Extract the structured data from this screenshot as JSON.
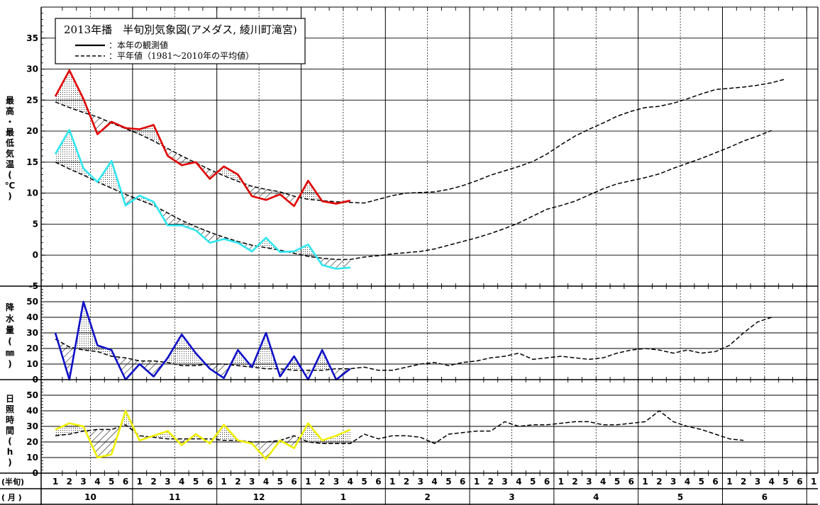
{
  "title": "2013年播　半旬別気象図(アメダス, 綾川町滝宮)",
  "legend": [
    {
      "label": "：本年の観測値",
      "style": "solid"
    },
    {
      "label": "：平年値（1981～2010年の平均値）",
      "style": "dashed"
    }
  ],
  "colors": {
    "max_temp": "#e00000",
    "min_temp": "#2ee6f0",
    "precip": "#1010c8",
    "sunshine": "#f0f000",
    "normal": "#000000"
  },
  "axis_labels": {
    "temp": [
      "最",
      "高",
      "・",
      "最",
      "低",
      "気",
      "温",
      "(",
      "℃",
      ")"
    ],
    "precip": [
      "降",
      "水",
      "量",
      "(",
      "㎜",
      ")"
    ],
    "sun": [
      "日",
      "照",
      "時",
      "間",
      "(",
      "h",
      ")"
    ],
    "x_row1": "(半旬)",
    "x_row2": "( 月 )"
  },
  "x_axis": {
    "pentads": [
      "1",
      "2",
      "3",
      "4",
      "5",
      "6",
      "1",
      "2",
      "3",
      "4",
      "5",
      "6",
      "1",
      "2",
      "3",
      "4",
      "5",
      "6",
      "1",
      "2",
      "3",
      "4",
      "5",
      "6",
      "1",
      "2",
      "3",
      "4",
      "5",
      "6",
      "1",
      "2",
      "3",
      "4",
      "5",
      "6",
      "1",
      "2",
      "3",
      "4",
      "5",
      "6",
      "1",
      "2",
      "3",
      "4",
      "5",
      "6",
      "1",
      "2",
      "3",
      "4",
      "5",
      "6",
      "1"
    ],
    "months": [
      "10",
      "11",
      "12",
      "1",
      "2",
      "3",
      "4",
      "5",
      "6"
    ]
  },
  "chart_data": [
    {
      "type": "line",
      "panel": "temperature",
      "ylim": [
        -5,
        40
      ],
      "yticks": [
        "-5",
        "0",
        "5",
        "10",
        "15",
        "20",
        "25",
        "30",
        "35"
      ],
      "series": [
        {
          "name": "最高",
          "observed": true,
          "values": [
            25.6,
            29.8,
            25.2,
            19.5,
            21.5,
            20.5,
            20.3,
            21.0,
            16.0,
            14.5,
            15.0,
            12.3,
            14.3,
            13.0,
            9.5,
            8.9,
            9.8,
            7.9,
            12.0,
            8.7,
            8.3,
            8.8
          ]
        },
        {
          "name": "最低",
          "observed": true,
          "values": [
            16.3,
            20.2,
            14.0,
            11.8,
            15.2,
            8.0,
            9.6,
            8.6,
            4.8,
            4.8,
            4.0,
            2.0,
            2.6,
            2.0,
            0.6,
            2.8,
            0.5,
            0.6,
            1.7,
            -1.6,
            -2.2,
            -2.0
          ]
        },
        {
          "name": "最高平年",
          "observed": false,
          "values": [
            24.7,
            23.8,
            23.0,
            22.3,
            21.3,
            20.4,
            19.5,
            18.4,
            17.2,
            16.0,
            14.9,
            13.8,
            12.8,
            11.9,
            11.1,
            10.6,
            10.2,
            9.5,
            9.0,
            8.8,
            8.6,
            8.5,
            8.4,
            9.0,
            9.6,
            10.0,
            10.1,
            10.2,
            10.6,
            11.2,
            12.0,
            12.9,
            13.6,
            14.3,
            15.1,
            16.3,
            17.8,
            19.2,
            20.3,
            21.3,
            22.4,
            23.2,
            23.8,
            24.0,
            24.5,
            25.2,
            26.0,
            26.7,
            26.9,
            27.1,
            27.4,
            27.8,
            28.4
          ]
        },
        {
          "name": "最低平年",
          "observed": false,
          "values": [
            15.0,
            13.9,
            12.9,
            11.8,
            10.8,
            9.8,
            8.9,
            8.0,
            6.8,
            5.6,
            4.6,
            3.7,
            2.9,
            2.2,
            1.6,
            1.2,
            0.8,
            0.3,
            -0.2,
            -0.5,
            -0.7,
            -0.7,
            -0.3,
            -0.1,
            0.2,
            0.4,
            0.6,
            1.0,
            1.6,
            2.2,
            2.8,
            3.5,
            4.3,
            5.2,
            6.3,
            7.4,
            8.0,
            8.7,
            9.7,
            10.7,
            11.5,
            12.0,
            12.5,
            13.1,
            14.0,
            14.8,
            15.6,
            16.5,
            17.4,
            18.4,
            19.2,
            20.1
          ]
        }
      ]
    },
    {
      "type": "line",
      "panel": "precipitation",
      "ylim": [
        0,
        50
      ],
      "yticks": [
        "0",
        "10",
        "20",
        "30",
        "40",
        "50"
      ],
      "series": [
        {
          "name": "降水量",
          "observed": true,
          "values": [
            30,
            0,
            50,
            22,
            19,
            0,
            10,
            2,
            14,
            29,
            17,
            7,
            1,
            19,
            8,
            30,
            2,
            15,
            0,
            19,
            0,
            7
          ]
        },
        {
          "name": "降水量平年",
          "observed": false,
          "values": [
            26,
            21,
            19,
            18,
            15,
            14,
            12,
            12,
            11,
            9,
            9,
            10,
            10,
            9,
            8,
            7,
            7,
            6,
            6,
            6,
            7,
            7,
            8,
            6,
            6,
            8,
            10,
            11,
            9,
            11,
            12,
            14,
            15,
            17,
            13,
            14,
            15,
            14,
            13,
            14,
            17,
            19,
            20,
            19,
            17,
            19,
            17,
            18,
            22,
            30,
            37,
            40
          ]
        }
      ]
    },
    {
      "type": "line",
      "panel": "sunshine",
      "ylim": [
        0,
        50
      ],
      "yticks": [
        "0",
        "10",
        "20",
        "30",
        "40",
        "50"
      ],
      "series": [
        {
          "name": "日照時間",
          "observed": true,
          "values": [
            28,
            32,
            30,
            10,
            12,
            40,
            21,
            24,
            27,
            18,
            25,
            19,
            31,
            21,
            19,
            9,
            21,
            16,
            32,
            21,
            24,
            28
          ]
        },
        {
          "name": "日照時間平年",
          "observed": false,
          "values": [
            24,
            25,
            27,
            28,
            28,
            31,
            24,
            23,
            22,
            22,
            22,
            22,
            21,
            21,
            20,
            20,
            21,
            24,
            20,
            19,
            19,
            19,
            25,
            22,
            24,
            24,
            23,
            19,
            25,
            26,
            27,
            27,
            33,
            30,
            31,
            31,
            32,
            33,
            33,
            31,
            31,
            32,
            33,
            40,
            33,
            30,
            28,
            25,
            22,
            21
          ]
        }
      ]
    }
  ]
}
